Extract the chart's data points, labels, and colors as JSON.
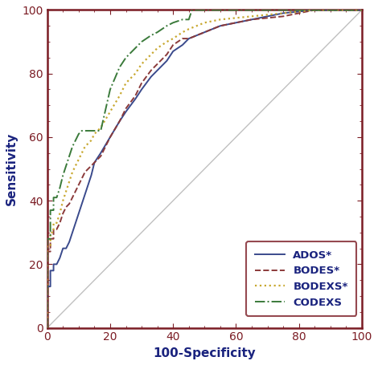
{
  "title": "",
  "xlabel": "100-Specificity",
  "ylabel": "Sensitivity",
  "xlim": [
    0,
    100
  ],
  "ylim": [
    0,
    100
  ],
  "xticks": [
    0,
    20,
    40,
    60,
    80,
    100
  ],
  "yticks": [
    0,
    20,
    40,
    60,
    80,
    100
  ],
  "xlabel_color": "#1a237e",
  "ylabel_color": "#1a237e",
  "tick_color": "#1a237e",
  "spine_color": "#7b1c24",
  "background_color": "#ffffff",
  "legend_edge_color": "#7b1c24",
  "legend_text_color": "#1a237e",
  "reference_line_color": "#c0c0c0",
  "curves": {
    "ADOS": {
      "color": "#3a4a8c",
      "linestyle": "solid",
      "linewidth": 1.4,
      "label": "ADOS*",
      "x": [
        0,
        0,
        1,
        1,
        2,
        2,
        3,
        4,
        5,
        6,
        7,
        8,
        9,
        10,
        11,
        12,
        13,
        14,
        15,
        17,
        20,
        23,
        25,
        28,
        30,
        33,
        35,
        38,
        40,
        43,
        45,
        50,
        55,
        60,
        65,
        70,
        75,
        80,
        85,
        90,
        95,
        100
      ],
      "y": [
        0,
        13,
        13,
        18,
        18,
        20,
        20,
        22,
        25,
        25,
        27,
        30,
        33,
        36,
        39,
        42,
        45,
        48,
        52,
        55,
        60,
        65,
        68,
        72,
        75,
        79,
        81,
        84,
        87,
        89,
        91,
        93,
        95,
        96,
        97,
        98,
        99,
        99.5,
        100,
        100,
        100,
        100
      ]
    },
    "BODES": {
      "color": "#8b3a3a",
      "linestyle": "dashed",
      "linewidth": 1.4,
      "label": "BODES*",
      "x": [
        0,
        0,
        1,
        1,
        2,
        2,
        3,
        4,
        5,
        6,
        7,
        8,
        9,
        10,
        11,
        12,
        13,
        14,
        15,
        17,
        20,
        23,
        25,
        28,
        30,
        33,
        35,
        38,
        40,
        43,
        45,
        50,
        55,
        60,
        65,
        70,
        75,
        80,
        85,
        90,
        95,
        100
      ],
      "y": [
        0,
        24,
        24,
        28,
        28,
        31,
        31,
        33,
        36,
        38,
        39,
        41,
        43,
        45,
        47,
        49,
        50,
        51,
        52,
        54,
        60,
        65,
        69,
        73,
        77,
        81,
        83,
        86,
        89,
        91,
        91,
        93,
        95,
        96,
        97,
        97.5,
        98,
        99,
        100,
        100,
        100,
        100
      ]
    },
    "BODEXS": {
      "color": "#c8a830",
      "linestyle": "dotted",
      "linewidth": 1.6,
      "label": "BODEXS*",
      "x": [
        0,
        0,
        1,
        1,
        2,
        2,
        3,
        4,
        5,
        6,
        7,
        8,
        9,
        10,
        11,
        12,
        13,
        14,
        15,
        17,
        20,
        23,
        25,
        28,
        30,
        33,
        35,
        38,
        40,
        43,
        45,
        50,
        55,
        60,
        65,
        70,
        75,
        80,
        85,
        90,
        95,
        100
      ],
      "y": [
        0,
        26,
        26,
        30,
        30,
        33,
        33,
        36,
        40,
        43,
        46,
        49,
        51,
        53,
        55,
        57,
        58,
        59,
        61,
        63,
        68,
        73,
        77,
        80,
        83,
        86,
        88,
        90,
        91,
        93,
        94,
        96,
        97,
        97.5,
        98,
        98.5,
        99,
        99.5,
        100,
        100,
        100,
        100
      ]
    },
    "CODEXS": {
      "color": "#3a7a3a",
      "linestyle": "dashdot",
      "linewidth": 1.4,
      "label": "CODEXS",
      "x": [
        0,
        0,
        1,
        1,
        2,
        2,
        3,
        4,
        5,
        6,
        7,
        8,
        9,
        10,
        11,
        12,
        13,
        14,
        15,
        17,
        20,
        23,
        25,
        28,
        30,
        33,
        35,
        38,
        40,
        43,
        45,
        46,
        50,
        55,
        60,
        65,
        70,
        75,
        80,
        85,
        90,
        95,
        100
      ],
      "y": [
        0,
        28,
        28,
        37,
        37,
        41,
        41,
        44,
        48,
        51,
        54,
        57,
        59,
        61,
        62,
        62,
        62,
        62,
        62,
        62,
        75,
        82,
        85,
        88,
        90,
        92,
        93,
        95,
        96,
        97,
        97,
        100,
        100,
        100,
        100,
        100,
        100,
        100,
        100,
        100,
        100,
        100,
        100
      ]
    }
  }
}
